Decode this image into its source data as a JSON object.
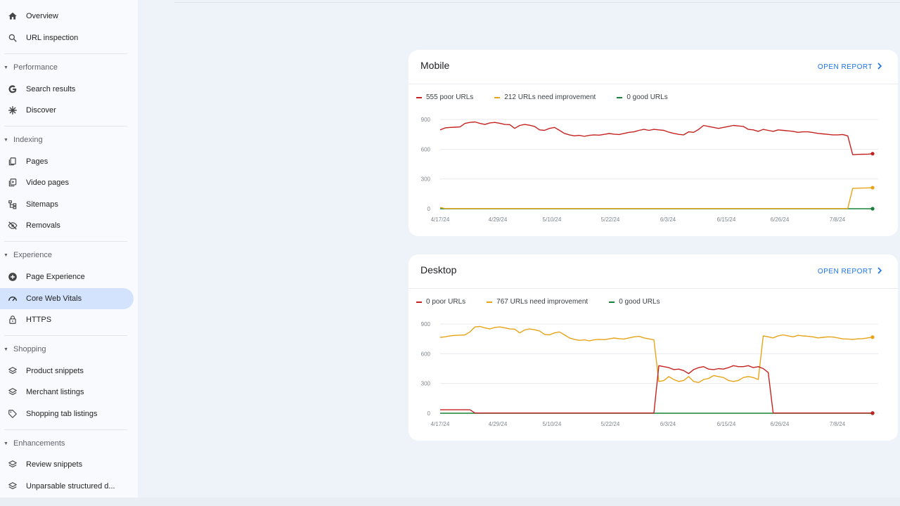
{
  "sidebar": {
    "top_items": [
      {
        "label": "Overview",
        "icon": "home-icon"
      },
      {
        "label": "URL inspection",
        "icon": "search-icon"
      }
    ],
    "sections": [
      {
        "title": "Performance",
        "items": [
          {
            "label": "Search results",
            "icon": "google-g-icon"
          },
          {
            "label": "Discover",
            "icon": "asterisk-icon"
          }
        ]
      },
      {
        "title": "Indexing",
        "items": [
          {
            "label": "Pages",
            "icon": "pages-icon"
          },
          {
            "label": "Video pages",
            "icon": "video-pages-icon"
          },
          {
            "label": "Sitemaps",
            "icon": "sitemaps-icon"
          },
          {
            "label": "Removals",
            "icon": "eye-off-icon"
          }
        ]
      },
      {
        "title": "Experience",
        "items": [
          {
            "label": "Page Experience",
            "icon": "plus-circle-icon"
          },
          {
            "label": "Core Web Vitals",
            "icon": "gauge-icon",
            "active": true
          },
          {
            "label": "HTTPS",
            "icon": "lock-icon"
          }
        ]
      },
      {
        "title": "Shopping",
        "items": [
          {
            "label": "Product snippets",
            "icon": "layers-icon"
          },
          {
            "label": "Merchant listings",
            "icon": "layers-icon"
          },
          {
            "label": "Shopping tab listings",
            "icon": "tag-icon"
          }
        ]
      },
      {
        "title": "Enhancements",
        "items": [
          {
            "label": "Review snippets",
            "icon": "layers-icon"
          },
          {
            "label": "Unparsable structured d...",
            "icon": "layers-icon"
          }
        ]
      }
    ]
  },
  "colors": {
    "poor": "#c5221f",
    "needs_improvement": "#e8a317",
    "good": "#188038",
    "accent": "#1a73e8",
    "active_bg": "#d3e3fd"
  },
  "mobile": {
    "title": "Mobile",
    "open_report": "OPEN REPORT",
    "legend": [
      "555 poor URLs",
      "212 URLs need improvement",
      "0 good URLs"
    ]
  },
  "desktop": {
    "title": "Desktop",
    "open_report": "OPEN REPORT",
    "legend": [
      "0 poor URLs",
      "767 URLs need improvement",
      "0 good URLs"
    ]
  },
  "chart_data": [
    {
      "type": "line",
      "title": "Mobile",
      "x_ticks": [
        "4/17/24",
        "4/29/24",
        "5/10/24",
        "5/22/24",
        "6/3/24",
        "6/15/24",
        "6/26/24",
        "7/8/24"
      ],
      "y_ticks": [
        0,
        300,
        600,
        900
      ],
      "ylim": [
        0,
        900
      ],
      "n_points": 88,
      "series": [
        {
          "name": "555 poor URLs",
          "color": "#c5221f",
          "values": [
            795,
            815,
            820,
            822,
            825,
            860,
            870,
            875,
            860,
            850,
            865,
            870,
            862,
            850,
            848,
            810,
            840,
            850,
            842,
            830,
            795,
            790,
            810,
            820,
            790,
            760,
            745,
            735,
            740,
            730,
            740,
            745,
            742,
            750,
            758,
            752,
            748,
            760,
            770,
            775,
            790,
            800,
            790,
            800,
            795,
            790,
            772,
            760,
            750,
            745,
            775,
            770,
            800,
            840,
            830,
            820,
            810,
            820,
            830,
            840,
            835,
            830,
            800,
            795,
            780,
            800,
            790,
            780,
            795,
            790,
            785,
            780,
            770,
            775,
            775,
            768,
            760,
            755,
            750,
            745,
            745,
            748,
            735,
            545,
            548,
            549,
            550,
            555
          ]
        },
        {
          "name": "212 URLs need improvement",
          "color": "#e8a317",
          "values": [
            12,
            2,
            2,
            2,
            2,
            2,
            2,
            2,
            2,
            2,
            2,
            2,
            2,
            2,
            2,
            2,
            2,
            2,
            2,
            2,
            2,
            2,
            2,
            2,
            2,
            2,
            2,
            2,
            2,
            2,
            2,
            2,
            2,
            2,
            2,
            2,
            2,
            2,
            2,
            2,
            2,
            2,
            2,
            2,
            2,
            2,
            2,
            2,
            2,
            2,
            2,
            2,
            2,
            2,
            2,
            2,
            2,
            2,
            2,
            2,
            2,
            2,
            2,
            2,
            2,
            2,
            2,
            2,
            2,
            2,
            2,
            2,
            2,
            2,
            2,
            2,
            2,
            2,
            2,
            2,
            2,
            2,
            2,
            205,
            207,
            208,
            210,
            212
          ]
        },
        {
          "name": "0 good URLs",
          "color": "#188038",
          "values": [
            0,
            0,
            0,
            0,
            0,
            0,
            0,
            0,
            0,
            0,
            0,
            0,
            0,
            0,
            0,
            0,
            0,
            0,
            0,
            0,
            0,
            0,
            0,
            0,
            0,
            0,
            0,
            0,
            0,
            0,
            0,
            0,
            0,
            0,
            0,
            0,
            0,
            0,
            0,
            0,
            0,
            0,
            0,
            0,
            0,
            0,
            0,
            0,
            0,
            0,
            0,
            0,
            0,
            0,
            0,
            0,
            0,
            0,
            0,
            0,
            0,
            0,
            0,
            0,
            0,
            0,
            0,
            0,
            0,
            0,
            0,
            0,
            0,
            0,
            0,
            0,
            0,
            0,
            0,
            0,
            0,
            0,
            0,
            0,
            0,
            0,
            0,
            0
          ]
        }
      ]
    },
    {
      "type": "line",
      "title": "Desktop",
      "x_ticks": [
        "4/17/24",
        "4/29/24",
        "5/10/24",
        "5/22/24",
        "6/3/24",
        "6/15/24",
        "6/26/24",
        "7/8/24"
      ],
      "y_ticks": [
        0,
        300,
        600,
        900
      ],
      "ylim": [
        0,
        900
      ],
      "n_points": 88,
      "series": [
        {
          "name": "0 poor URLs",
          "color": "#c5221f",
          "values": [
            35,
            35,
            35,
            35,
            35,
            35,
            35,
            2,
            2,
            2,
            2,
            2,
            2,
            2,
            2,
            2,
            2,
            2,
            2,
            2,
            2,
            2,
            2,
            2,
            2,
            2,
            2,
            2,
            2,
            2,
            2,
            2,
            2,
            2,
            2,
            2,
            2,
            2,
            2,
            2,
            2,
            2,
            2,
            2,
            480,
            470,
            460,
            440,
            445,
            430,
            400,
            440,
            460,
            470,
            445,
            440,
            450,
            445,
            460,
            480,
            470,
            470,
            480,
            460,
            470,
            450,
            410,
            2,
            2,
            2,
            2,
            2,
            2,
            2,
            2,
            2,
            2,
            2,
            2,
            2,
            2,
            2,
            2,
            2,
            2,
            2,
            2,
            2
          ]
        },
        {
          "name": "767 URLs need improvement",
          "color": "#e8a317",
          "values": [
            765,
            770,
            780,
            785,
            787,
            790,
            820,
            870,
            875,
            860,
            850,
            865,
            870,
            862,
            850,
            848,
            810,
            840,
            850,
            842,
            830,
            795,
            790,
            810,
            820,
            790,
            760,
            745,
            735,
            740,
            730,
            740,
            745,
            742,
            750,
            758,
            752,
            748,
            760,
            770,
            775,
            760,
            750,
            740,
            320,
            330,
            370,
            340,
            320,
            330,
            370,
            320,
            310,
            340,
            350,
            380,
            370,
            360,
            330,
            320,
            330,
            360,
            370,
            360,
            340,
            780,
            770,
            760,
            780,
            790,
            780,
            770,
            785,
            780,
            775,
            770,
            760,
            765,
            770,
            768,
            760,
            750,
            748,
            745,
            750,
            752,
            760,
            767
          ]
        },
        {
          "name": "0 good URLs",
          "color": "#188038",
          "values": [
            0,
            0,
            0,
            0,
            0,
            0,
            0,
            0,
            0,
            0,
            0,
            0,
            0,
            0,
            0,
            0,
            0,
            0,
            0,
            0,
            0,
            0,
            0,
            0,
            0,
            0,
            0,
            0,
            0,
            0,
            0,
            0,
            0,
            0,
            0,
            0,
            0,
            0,
            0,
            0,
            0,
            0,
            0,
            0,
            0,
            0,
            0,
            0,
            0,
            0,
            0,
            0,
            0,
            0,
            0,
            0,
            0,
            0,
            0,
            0,
            0,
            0,
            0,
            0,
            0,
            0,
            0,
            0,
            0,
            0,
            0,
            0,
            0,
            0,
            0,
            0,
            0,
            0,
            0,
            0,
            0,
            0,
            0,
            0,
            0,
            0,
            0,
            0
          ]
        }
      ]
    }
  ]
}
